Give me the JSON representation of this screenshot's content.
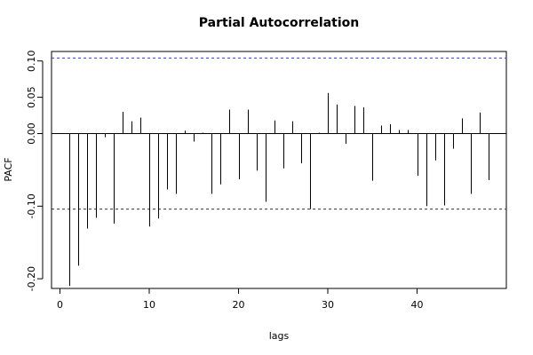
{
  "chart_data": {
    "type": "bar",
    "title": "Partial Autocorrelation",
    "xlabel": "lags",
    "ylabel": "PACF",
    "xlim": [
      0,
      49
    ],
    "ylim": [
      -0.22,
      0.11
    ],
    "x_ticks": [
      0,
      10,
      20,
      30,
      40
    ],
    "x_tick_labels": [
      "0",
      "10",
      "20",
      "30",
      "40"
    ],
    "y_ticks": [
      -0.2,
      -0.1,
      0.0,
      0.05,
      0.1
    ],
    "y_tick_labels": [
      "-0.20",
      "-0.10",
      "0.00",
      "0.05",
      "0.10"
    ],
    "grid": false,
    "confidence_bounds": [
      0.104,
      -0.104
    ],
    "colors": {
      "bars": "#000000",
      "upper_bound": "#3333ff",
      "lower_bound": "#333333",
      "frame": "#000000"
    },
    "lags": [
      1,
      2,
      3,
      4,
      5,
      6,
      7,
      8,
      9,
      10,
      11,
      12,
      13,
      14,
      15,
      16,
      17,
      18,
      19,
      20,
      21,
      22,
      23,
      24,
      25,
      26,
      27,
      28,
      29,
      30,
      31,
      32,
      33,
      34,
      35,
      36,
      37,
      38,
      39,
      40,
      41,
      42,
      43,
      44,
      45,
      46,
      47,
      48
    ],
    "values": [
      -0.21,
      -0.182,
      -0.131,
      -0.116,
      -0.005,
      -0.124,
      0.03,
      0.017,
      0.022,
      -0.128,
      -0.117,
      -0.077,
      -0.083,
      0.004,
      -0.011,
      0.001,
      -0.083,
      -0.07,
      0.033,
      -0.063,
      0.033,
      -0.051,
      -0.094,
      0.018,
      -0.048,
      0.017,
      -0.041,
      -0.104,
      0.001,
      0.056,
      0.04,
      -0.014,
      0.038,
      0.036,
      -0.065,
      0.011,
      0.013,
      0.005,
      0.005,
      -0.058,
      -0.1,
      -0.037,
      -0.099,
      -0.021,
      0.021,
      -0.083,
      0.029,
      -0.064
    ]
  }
}
